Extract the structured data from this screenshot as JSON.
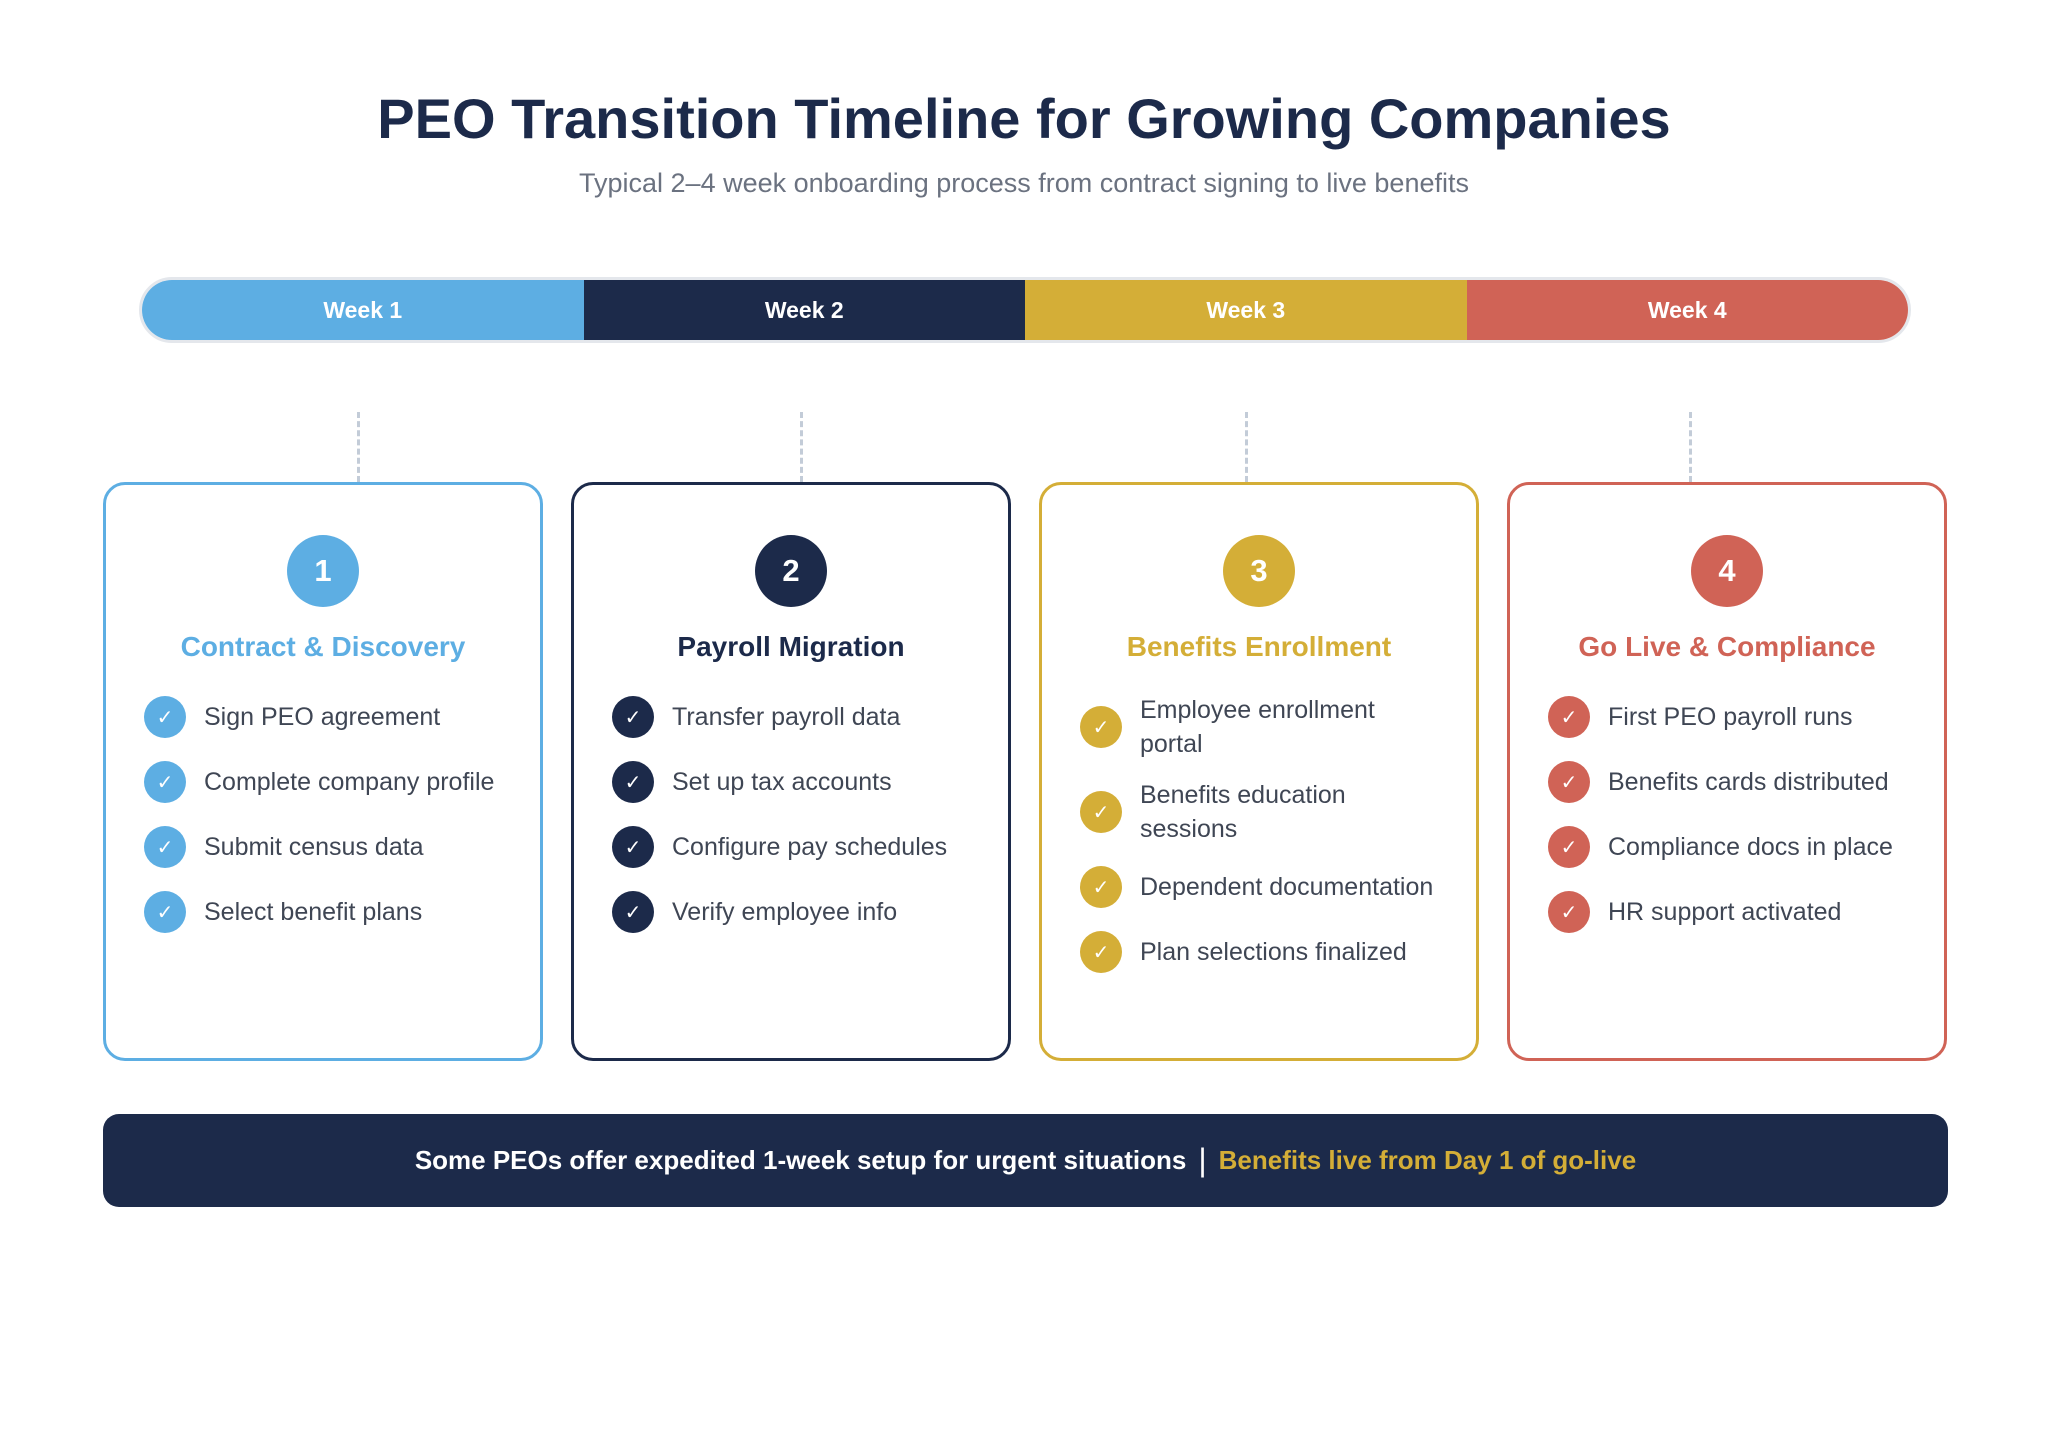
{
  "header": {
    "title": "PEO Transition Timeline for Growing Companies",
    "subtitle": "Typical 2–4 week onboarding process from contract signing to live benefits"
  },
  "weeks": [
    {
      "label": "Week 1",
      "color": "#5daee3"
    },
    {
      "label": "Week 2",
      "color": "#1c2a4a"
    },
    {
      "label": "Week 3",
      "color": "#d4ae37"
    },
    {
      "label": "Week 4",
      "color": "#d06356"
    }
  ],
  "phases": [
    {
      "number": "1",
      "title": "Contract & Discovery",
      "color": "#5daee3",
      "items": [
        "Sign PEO agreement",
        "Complete company profile",
        "Submit census data",
        "Select benefit plans"
      ]
    },
    {
      "number": "2",
      "title": "Payroll Migration",
      "color": "#1c2a4a",
      "items": [
        "Transfer payroll data",
        "Set up tax accounts",
        "Configure pay schedules",
        "Verify employee info"
      ]
    },
    {
      "number": "3",
      "title": "Benefits Enrollment",
      "color": "#d4ae37",
      "items": [
        "Employee enrollment portal",
        "Benefits education sessions",
        "Dependent documentation",
        "Plan selections finalized"
      ]
    },
    {
      "number": "4",
      "title": "Go Live & Compliance",
      "color": "#d06356",
      "items": [
        "First PEO payroll runs",
        "Benefits cards distributed",
        "Compliance docs in place",
        "HR support activated"
      ]
    }
  ],
  "footer": {
    "note": "Some PEOs offer expedited 1-week setup for urgent situations",
    "separator": "|",
    "highlight": "Benefits live from Day 1 of go-live"
  },
  "icons": {
    "check": "check-icon"
  }
}
